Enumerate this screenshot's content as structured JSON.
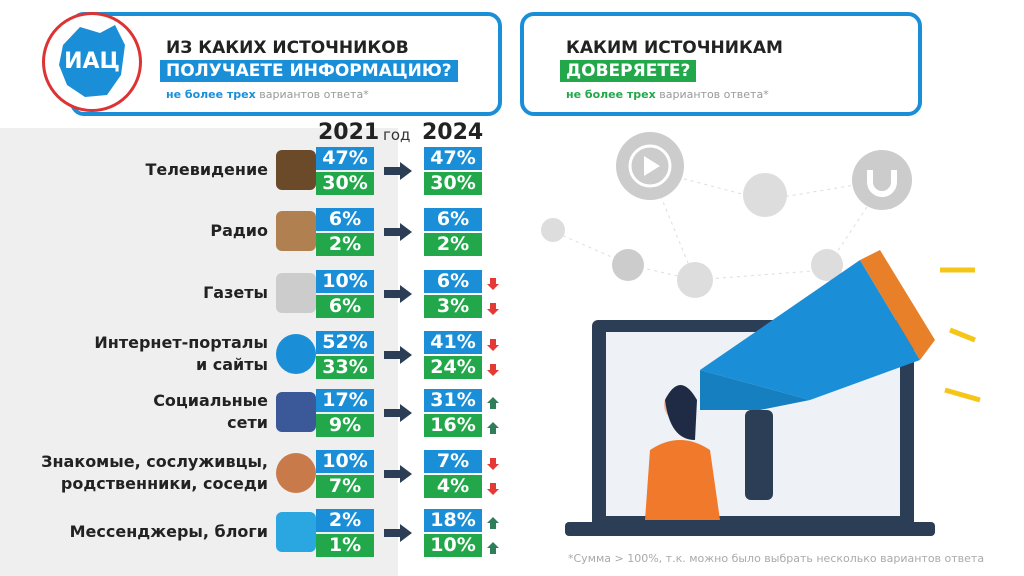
{
  "logo": "ИАЦ",
  "left_panel": {
    "title_lines": [
      "ИЗ КАКИХ ИСТОЧНИКОВ",
      "ПОЛУЧАЕТЕ ИНФОРМАЦИЮ?"
    ],
    "note_bold": "не более трех",
    "note_rest": "вариантов ответа*"
  },
  "right_panel": {
    "title_lines": [
      "КАКИМ ИСТОЧНИКАМ",
      "ДОВЕРЯЕТЕ?"
    ],
    "note_bold": "не более трех",
    "note_rest": "вариантов ответа*"
  },
  "header": {
    "year_from": "2021",
    "middle": "год",
    "year_to": "2024"
  },
  "rows": [
    {
      "label": [
        "Телевидение"
      ],
      "v2021": [
        "47%",
        "30%"
      ],
      "v2024": [
        "47%",
        "30%"
      ],
      "trend": [
        null,
        null
      ]
    },
    {
      "label": [
        "Радио"
      ],
      "v2021": [
        "6%",
        "2%"
      ],
      "v2024": [
        "6%",
        "2%"
      ],
      "trend": [
        null,
        null
      ]
    },
    {
      "label": [
        "Газеты"
      ],
      "v2021": [
        "10%",
        "6%"
      ],
      "v2024": [
        "6%",
        "3%"
      ],
      "trend": [
        "down",
        "down"
      ]
    },
    {
      "label": [
        "Интернет-порталы",
        "и сайты"
      ],
      "v2021": [
        "52%",
        "33%"
      ],
      "v2024": [
        "41%",
        "24%"
      ],
      "trend": [
        "down",
        "down"
      ]
    },
    {
      "label": [
        "Социальные",
        "сети"
      ],
      "v2021": [
        "17%",
        "9%"
      ],
      "v2024": [
        "31%",
        "16%"
      ],
      "trend": [
        "up",
        "up"
      ]
    },
    {
      "label": [
        "Знакомые, сослуживцы,",
        "родственники, соседи"
      ],
      "v2021": [
        "10%",
        "7%"
      ],
      "v2024": [
        "7%",
        "4%"
      ],
      "trend": [
        "down",
        "down"
      ]
    },
    {
      "label": [
        "Мессенджеры, блоги"
      ],
      "v2021": [
        "2%",
        "1%"
      ],
      "v2024": [
        "18%",
        "10%"
      ],
      "trend": [
        "up",
        "up"
      ]
    }
  ],
  "footnote": "*Сумма  > 100%, т.к. можно было выбрать несколько вариантов ответа"
}
